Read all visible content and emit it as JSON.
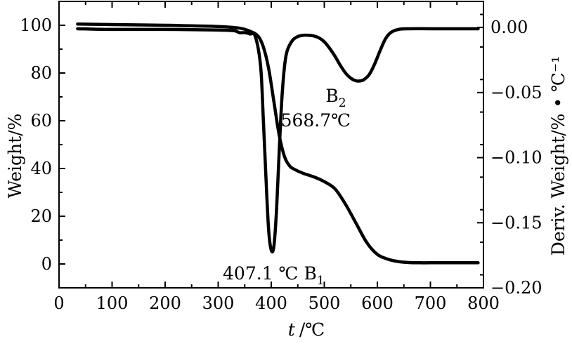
{
  "chart_data": {
    "type": "line",
    "title": "",
    "xlabel_italic": "t",
    "xlabel_rest": "/℃",
    "ylabel_left": "Weight/%",
    "ylabel_right": "Deriv. Weight/% • ℃⁻¹",
    "xlim": [
      0,
      800
    ],
    "ylim_left": [
      -10,
      110
    ],
    "ylim_right": [
      -0.2,
      0.02
    ],
    "x_ticks": [
      "0",
      "100",
      "200",
      "300",
      "400",
      "500",
      "600",
      "700",
      "800"
    ],
    "y_ticks_left": [
      "0",
      "20",
      "40",
      "60",
      "80",
      "100"
    ],
    "y_ticks_right": [
      "0.00",
      "−0.05",
      "−0.10",
      "−0.15",
      "−0.20"
    ],
    "grid": false,
    "legend": "none",
    "series": [
      {
        "axis": "left",
        "color": "#000000",
        "x": [
          35,
          100,
          200,
          300,
          340,
          360,
          375,
          385,
          395,
          405,
          415,
          425,
          435,
          445,
          460,
          480,
          500,
          520,
          540,
          560,
          580,
          600,
          620,
          640,
          660,
          680,
          700,
          750,
          790
        ],
        "y": [
          100.5,
          100.3,
          100.0,
          99.5,
          98.8,
          97.5,
          95.5,
          91,
          82,
          68,
          54,
          45,
          41,
          39.5,
          38,
          36.5,
          34.5,
          31.5,
          25,
          17,
          9,
          4,
          2,
          1,
          0.6,
          0.5,
          0.5,
          0.5,
          0.5
        ]
      },
      {
        "axis": "right",
        "color": "#000000",
        "x": [
          35,
          100,
          200,
          300,
          330,
          340,
          350,
          360,
          370,
          380,
          385,
          390,
          395,
          400,
          405,
          410,
          415,
          420,
          425,
          430,
          440,
          450,
          460,
          470,
          480,
          490,
          500,
          510,
          520,
          530,
          540,
          550,
          560,
          568.7,
          575,
          585,
          595,
          605,
          615,
          625,
          640,
          660,
          700,
          750,
          790
        ],
        "y": [
          -0.001,
          -0.0015,
          -0.0015,
          -0.002,
          -0.0025,
          -0.004,
          -0.004,
          -0.005,
          -0.007,
          -0.03,
          -0.07,
          -0.115,
          -0.155,
          -0.171,
          -0.168,
          -0.14,
          -0.095,
          -0.055,
          -0.03,
          -0.018,
          -0.01,
          -0.007,
          -0.006,
          -0.006,
          -0.0065,
          -0.008,
          -0.011,
          -0.016,
          -0.022,
          -0.029,
          -0.035,
          -0.039,
          -0.041,
          -0.041,
          -0.04,
          -0.036,
          -0.028,
          -0.018,
          -0.009,
          -0.004,
          -0.0015,
          -0.001,
          -0.001,
          -0.001,
          -0.001
        ]
      }
    ],
    "annotations": [
      {
        "text": "407.1 ℃ B",
        "sub": "1",
        "x": 407.1,
        "y_right": -0.171
      },
      {
        "text": "B",
        "sub": "2",
        "line2": "568.7℃",
        "x": 568.7,
        "y_right": -0.041
      }
    ]
  }
}
